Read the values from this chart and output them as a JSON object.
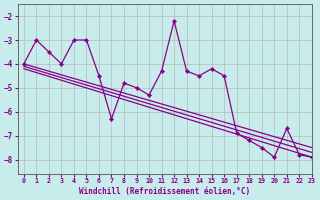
{
  "xlabel": "Windchill (Refroidissement éolien,°C)",
  "background_color": "#c8ecec",
  "line_color": "#880088",
  "grid_color": "#b0b0b0",
  "xlim": [
    -0.5,
    23
  ],
  "ylim": [
    -8.6,
    -1.5
  ],
  "yticks": [
    -8,
    -7,
    -6,
    -5,
    -4,
    -3,
    -2
  ],
  "xticks": [
    0,
    1,
    2,
    3,
    4,
    5,
    6,
    7,
    8,
    9,
    10,
    11,
    12,
    13,
    14,
    15,
    16,
    17,
    18,
    19,
    20,
    21,
    22,
    23
  ],
  "main_x": [
    0,
    1,
    2,
    3,
    4,
    5,
    6,
    7,
    8,
    9,
    10,
    11,
    12,
    13,
    14,
    15,
    16,
    17,
    18,
    19,
    20,
    21,
    22,
    23
  ],
  "main_y": [
    -4.0,
    -3.0,
    -3.5,
    -4.0,
    -3.0,
    -3.0,
    -4.5,
    -6.3,
    -4.8,
    -5.0,
    -5.3,
    -4.3,
    -2.2,
    -4.3,
    -4.5,
    -4.2,
    -4.5,
    -6.9,
    -7.2,
    -7.5,
    -7.9,
    -6.7,
    -7.8,
    -7.9
  ],
  "trend1_x": [
    0,
    23
  ],
  "trend1_y": [
    -4.0,
    -7.5
  ],
  "trend2_x": [
    0,
    23
  ],
  "trend2_y": [
    -4.1,
    -7.7
  ],
  "trend3_x": [
    0,
    23
  ],
  "trend3_y": [
    -4.2,
    -7.9
  ]
}
